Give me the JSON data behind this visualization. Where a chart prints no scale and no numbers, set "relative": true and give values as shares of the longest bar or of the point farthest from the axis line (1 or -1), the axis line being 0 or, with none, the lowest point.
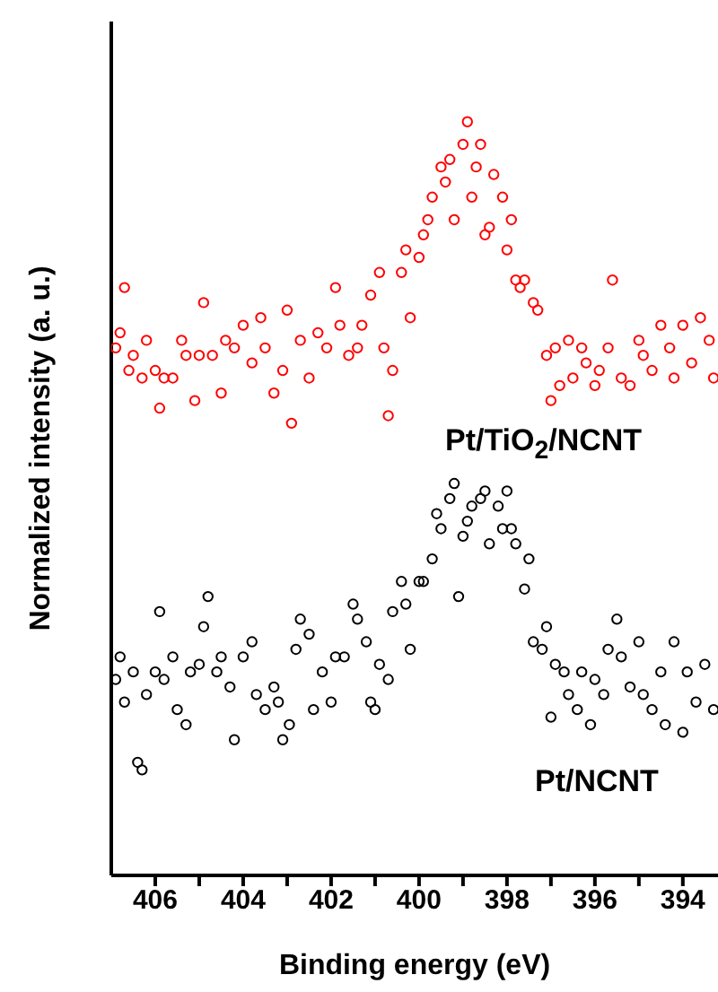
{
  "chart_data": {
    "type": "scatter",
    "xlabel": "Binding energy (eV)",
    "ylabel": "Normalized intensity (a. u.)",
    "relative": true,
    "marker": "circle",
    "grid": false,
    "legend": false,
    "xlim": [
      407,
      393.2
    ],
    "xticks": [
      406,
      {
        "value": 405,
        "label": null
      },
      404,
      {
        "value": 403,
        "label": null
      },
      402,
      {
        "value": 401,
        "label": null
      },
      400,
      {
        "value": 399,
        "label": null
      },
      398,
      {
        "value": 397,
        "label": null
      },
      396,
      {
        "value": 395,
        "label": null
      },
      394
    ],
    "series": [
      {
        "name": "Pt/TiO$_{2}$/NCNT",
        "color": "#ff0000",
        "x": [
          406.9,
          406.8,
          406.7,
          406.6,
          406.5,
          406.3,
          406.2,
          406.0,
          405.9,
          405.8,
          405.6,
          405.4,
          405.3,
          405.1,
          405.0,
          404.9,
          404.7,
          404.5,
          404.4,
          404.2,
          404.0,
          403.8,
          403.6,
          403.5,
          403.3,
          403.1,
          403.0,
          402.9,
          402.7,
          402.5,
          402.3,
          402.1,
          401.9,
          401.8,
          401.6,
          401.4,
          401.3,
          401.1,
          400.9,
          400.8,
          400.7,
          400.6,
          400.4,
          400.3,
          400.2,
          400.0,
          399.9,
          399.8,
          399.7,
          399.5,
          399.4,
          399.3,
          399.2,
          399.0,
          398.9,
          398.8,
          398.7,
          398.6,
          398.5,
          398.4,
          398.3,
          398.1,
          398.0,
          397.9,
          397.8,
          397.7,
          397.6,
          397.4,
          397.3,
          397.1,
          397.0,
          396.9,
          396.8,
          396.6,
          396.5,
          396.3,
          396.2,
          396.0,
          395.9,
          395.7,
          395.6,
          395.4,
          395.2,
          395.0,
          394.9,
          394.7,
          394.5,
          394.3,
          394.2,
          394.0,
          393.8,
          393.6,
          393.4,
          393.3
        ],
        "values": [
          0.7,
          0.72,
          0.78,
          0.67,
          0.69,
          0.66,
          0.71,
          0.67,
          0.62,
          0.66,
          0.66,
          0.71,
          0.69,
          0.63,
          0.69,
          0.76,
          0.69,
          0.64,
          0.71,
          0.7,
          0.73,
          0.68,
          0.74,
          0.7,
          0.64,
          0.67,
          0.75,
          0.6,
          0.71,
          0.66,
          0.72,
          0.7,
          0.78,
          0.73,
          0.69,
          0.7,
          0.73,
          0.77,
          0.8,
          0.7,
          0.61,
          0.67,
          0.8,
          0.83,
          0.74,
          0.82,
          0.85,
          0.87,
          0.9,
          0.94,
          0.92,
          0.95,
          0.87,
          0.97,
          1.0,
          0.9,
          0.94,
          0.97,
          0.85,
          0.86,
          0.93,
          0.9,
          0.83,
          0.87,
          0.79,
          0.78,
          0.79,
          0.76,
          0.75,
          0.69,
          0.63,
          0.7,
          0.65,
          0.71,
          0.66,
          0.7,
          0.68,
          0.65,
          0.67,
          0.7,
          0.79,
          0.66,
          0.65,
          0.71,
          0.69,
          0.67,
          0.73,
          0.7,
          0.66,
          0.73,
          0.68,
          0.74,
          0.71,
          0.66
        ]
      },
      {
        "name": "Pt/NCNT",
        "color": "#000000",
        "x": [
          406.9,
          406.8,
          406.7,
          406.5,
          406.4,
          406.3,
          406.2,
          406.0,
          405.9,
          405.8,
          405.6,
          405.5,
          405.3,
          405.2,
          405.0,
          404.9,
          404.8,
          404.6,
          404.5,
          404.3,
          404.2,
          404.0,
          403.8,
          403.7,
          403.5,
          403.3,
          403.2,
          403.1,
          402.95,
          402.8,
          402.7,
          402.5,
          402.4,
          402.2,
          402.0,
          401.9,
          401.7,
          401.5,
          401.4,
          401.2,
          401.1,
          401.0,
          400.9,
          400.7,
          400.6,
          400.4,
          400.3,
          400.2,
          400.0,
          399.9,
          399.7,
          399.6,
          399.5,
          399.3,
          399.2,
          399.1,
          399.0,
          398.9,
          398.8,
          398.6,
          398.5,
          398.4,
          398.2,
          398.1,
          398.0,
          397.9,
          397.8,
          397.6,
          397.5,
          397.4,
          397.2,
          397.1,
          397.0,
          396.9,
          396.7,
          396.6,
          396.4,
          396.3,
          396.1,
          396.0,
          395.8,
          395.7,
          395.5,
          395.4,
          395.2,
          395.0,
          394.9,
          394.7,
          394.5,
          394.4,
          394.2,
          394.0,
          393.9,
          393.7,
          393.5,
          393.3
        ],
        "values": [
          0.26,
          0.29,
          0.23,
          0.27,
          0.15,
          0.14,
          0.24,
          0.27,
          0.35,
          0.26,
          0.29,
          0.22,
          0.2,
          0.27,
          0.28,
          0.33,
          0.37,
          0.27,
          0.29,
          0.25,
          0.18,
          0.29,
          0.31,
          0.24,
          0.22,
          0.25,
          0.23,
          0.18,
          0.2,
          0.3,
          0.34,
          0.32,
          0.22,
          0.27,
          0.23,
          0.29,
          0.29,
          0.36,
          0.34,
          0.31,
          0.23,
          0.22,
          0.28,
          0.26,
          0.35,
          0.39,
          0.36,
          0.3,
          0.39,
          0.39,
          0.42,
          0.48,
          0.46,
          0.5,
          0.52,
          0.37,
          0.45,
          0.47,
          0.49,
          0.5,
          0.51,
          0.44,
          0.49,
          0.46,
          0.51,
          0.46,
          0.44,
          0.38,
          0.42,
          0.31,
          0.3,
          0.33,
          0.21,
          0.28,
          0.27,
          0.24,
          0.22,
          0.27,
          0.2,
          0.26,
          0.24,
          0.3,
          0.34,
          0.29,
          0.25,
          0.31,
          0.24,
          0.22,
          0.27,
          0.2,
          0.31,
          0.19,
          0.27,
          0.23,
          0.28,
          0.22
        ]
      }
    ]
  }
}
